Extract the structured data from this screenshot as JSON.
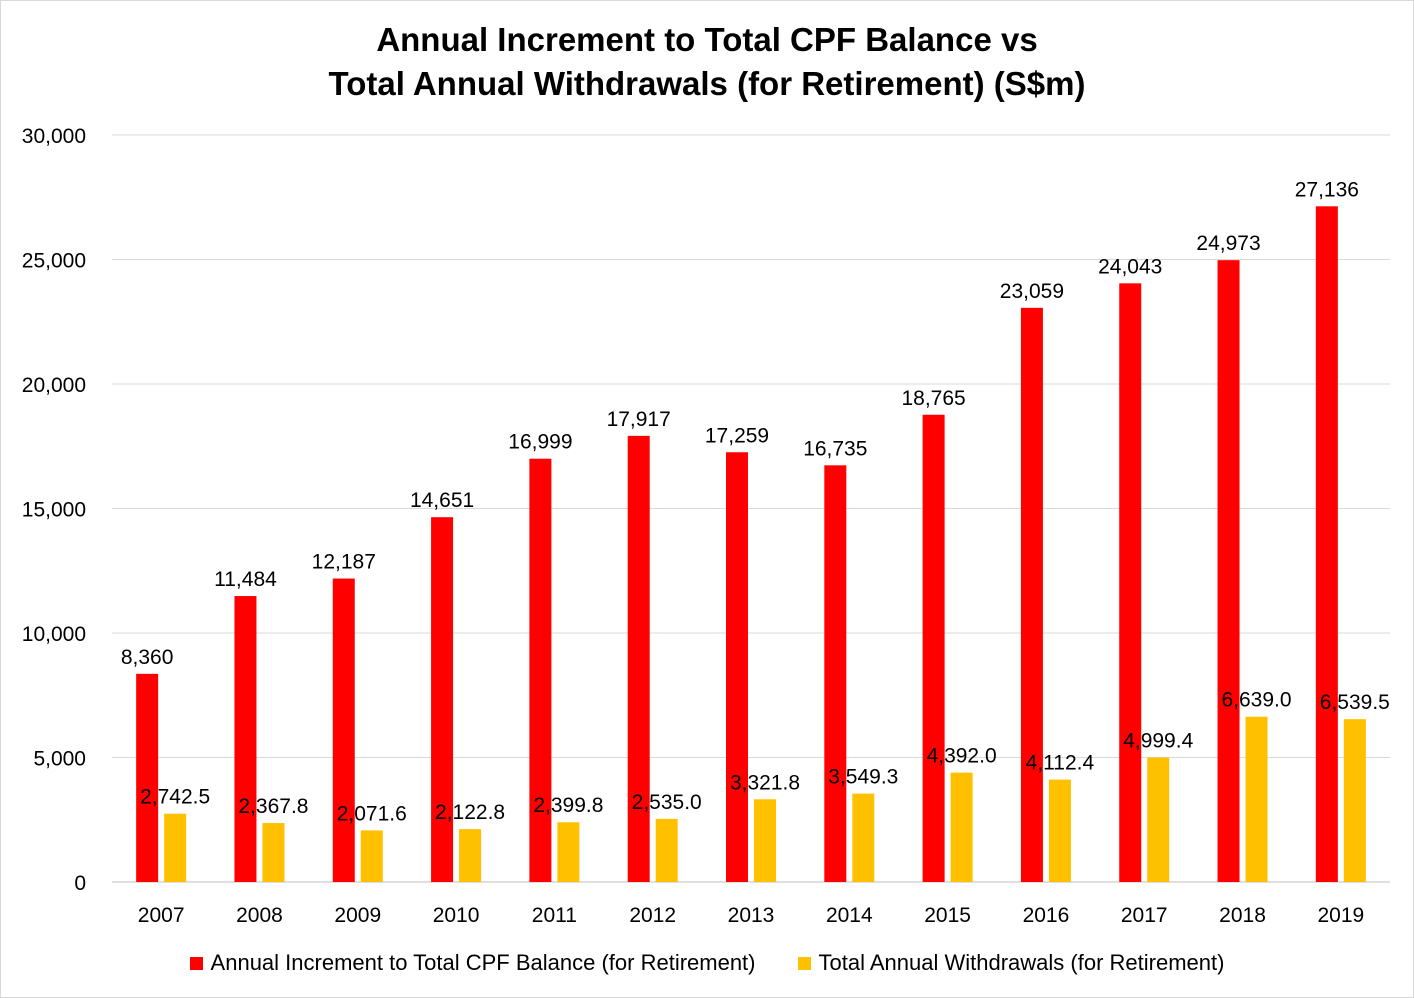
{
  "chart_data": {
    "type": "bar",
    "title_lines": [
      "Annual Increment to Total CPF Balance vs",
      "Total Annual Withdrawals (for Retirement) (S$m)"
    ],
    "categories": [
      "2007",
      "2008",
      "2009",
      "2010",
      "2011",
      "2012",
      "2013",
      "2014",
      "2015",
      "2016",
      "2017",
      "2018",
      "2019"
    ],
    "series": [
      {
        "name": "Annual Increment to Total CPF Balance (for Retirement)",
        "color": "#ff0000",
        "values": [
          8360,
          11484,
          12187,
          14651,
          16999,
          17917,
          17259,
          16735,
          18765,
          23059,
          24043,
          24973,
          27136
        ],
        "labels": [
          "8,360",
          "11,484",
          "12,187",
          "14,651",
          "16,999",
          "17,917",
          "17,259",
          "16,735",
          "18,765",
          "23,059",
          "24,043",
          "24,973",
          "27,136"
        ]
      },
      {
        "name": "Total Annual Withdrawals (for Retirement)",
        "color": "#ffc000",
        "values": [
          2742.5,
          2367.8,
          2071.6,
          2122.8,
          2399.8,
          2535.0,
          3321.8,
          3549.3,
          4392.0,
          4112.4,
          4999.4,
          6639.0,
          6539.5
        ],
        "labels": [
          "2,742.5",
          "2,367.8",
          "2,071.6",
          "2,122.8",
          "2,399.8",
          "2,535.0",
          "3,321.8",
          "3,549.3",
          "4,392.0",
          "4,112.4",
          "4,999.4",
          "6,639.0",
          "6,539.5"
        ]
      }
    ],
    "y_ticks": [
      0,
      5000,
      10000,
      15000,
      20000,
      25000,
      30000
    ],
    "y_tick_labels": [
      "0",
      "5,000",
      "10,000",
      "15,000",
      "20,000",
      "25,000",
      "30,000"
    ],
    "ylim": [
      0,
      30000
    ],
    "grid": true,
    "legend_position": "bottom"
  }
}
